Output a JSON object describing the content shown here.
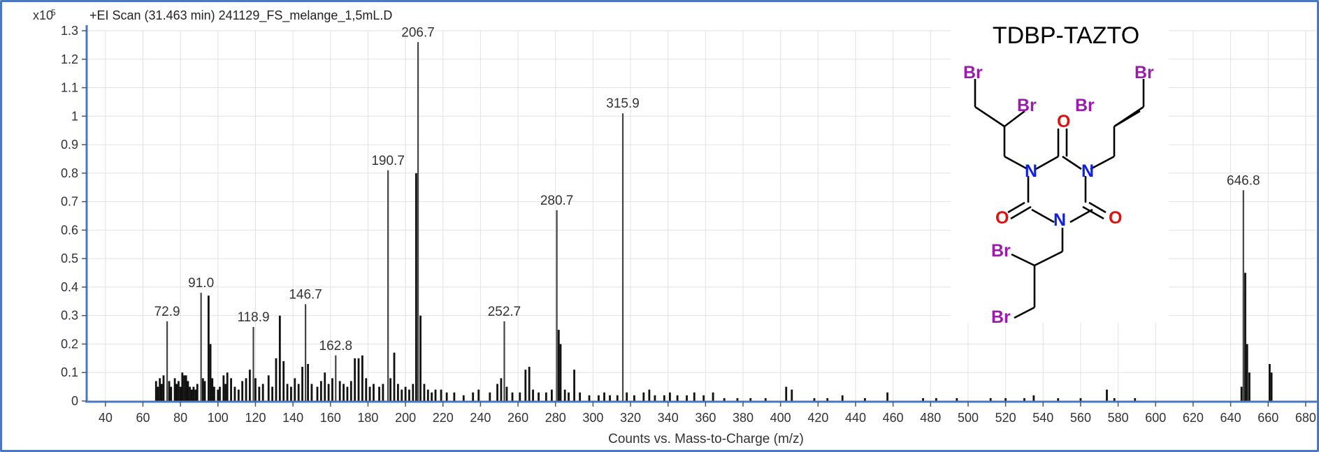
{
  "chart_data": {
    "type": "bar",
    "title": "+EI Scan (31.463 min) 241129_FS_melange_1,5mL.D",
    "xlabel": "Counts vs. Mass-to-Charge (m/z)",
    "ylabel": "",
    "y_multiplier": "x10",
    "y_exponent": "5",
    "xlim": [
      30,
      686
    ],
    "ylim": [
      0,
      1.3
    ],
    "grid": true,
    "x_ticks": [
      40,
      60,
      80,
      100,
      120,
      140,
      160,
      180,
      200,
      220,
      240,
      260,
      280,
      300,
      320,
      340,
      360,
      380,
      400,
      420,
      440,
      460,
      480,
      500,
      520,
      540,
      560,
      580,
      600,
      620,
      640,
      660,
      680
    ],
    "y_ticks": [
      0,
      0.1,
      0.2,
      0.3,
      0.4,
      0.5,
      0.6,
      0.7,
      0.8,
      0.9,
      1,
      1.1,
      1.2,
      1.3
    ],
    "labeled_peaks": [
      {
        "x": 72.9,
        "y": 0.28,
        "label": "72.9"
      },
      {
        "x": 91.0,
        "y": 0.38,
        "label": "91.0"
      },
      {
        "x": 118.9,
        "y": 0.26,
        "label": "118.9"
      },
      {
        "x": 146.7,
        "y": 0.34,
        "label": "146.7"
      },
      {
        "x": 162.8,
        "y": 0.16,
        "label": "162.8"
      },
      {
        "x": 190.7,
        "y": 0.81,
        "label": "190.7"
      },
      {
        "x": 206.7,
        "y": 1.26,
        "label": "206.7"
      },
      {
        "x": 252.7,
        "y": 0.28,
        "label": "252.7"
      },
      {
        "x": 280.7,
        "y": 0.67,
        "label": "280.7"
      },
      {
        "x": 315.9,
        "y": 1.01,
        "label": "315.9"
      },
      {
        "x": 646.8,
        "y": 0.74,
        "label": "646.8"
      }
    ],
    "peaks": [
      {
        "x": 67,
        "y": 0.07
      },
      {
        "x": 68,
        "y": 0.05
      },
      {
        "x": 69,
        "y": 0.08
      },
      {
        "x": 70,
        "y": 0.06
      },
      {
        "x": 71,
        "y": 0.09
      },
      {
        "x": 72.9,
        "y": 0.28
      },
      {
        "x": 74,
        "y": 0.07
      },
      {
        "x": 75,
        "y": 0.05
      },
      {
        "x": 77,
        "y": 0.08
      },
      {
        "x": 78,
        "y": 0.06
      },
      {
        "x": 79,
        "y": 0.07
      },
      {
        "x": 80,
        "y": 0.05
      },
      {
        "x": 81,
        "y": 0.1
      },
      {
        "x": 82,
        "y": 0.09
      },
      {
        "x": 83,
        "y": 0.09
      },
      {
        "x": 84,
        "y": 0.07
      },
      {
        "x": 85,
        "y": 0.05
      },
      {
        "x": 86,
        "y": 0.04
      },
      {
        "x": 87,
        "y": 0.05
      },
      {
        "x": 88,
        "y": 0.04
      },
      {
        "x": 89,
        "y": 0.06
      },
      {
        "x": 91.0,
        "y": 0.38
      },
      {
        "x": 92,
        "y": 0.08
      },
      {
        "x": 93,
        "y": 0.07
      },
      {
        "x": 95,
        "y": 0.37
      },
      {
        "x": 96,
        "y": 0.2
      },
      {
        "x": 97,
        "y": 0.08
      },
      {
        "x": 98,
        "y": 0.05
      },
      {
        "x": 100,
        "y": 0.04
      },
      {
        "x": 101,
        "y": 0.05
      },
      {
        "x": 103,
        "y": 0.09
      },
      {
        "x": 104,
        "y": 0.06
      },
      {
        "x": 105,
        "y": 0.1
      },
      {
        "x": 107,
        "y": 0.08
      },
      {
        "x": 109,
        "y": 0.05
      },
      {
        "x": 111,
        "y": 0.04
      },
      {
        "x": 113,
        "y": 0.07
      },
      {
        "x": 115,
        "y": 0.08
      },
      {
        "x": 117,
        "y": 0.11
      },
      {
        "x": 118.9,
        "y": 0.26
      },
      {
        "x": 120,
        "y": 0.08
      },
      {
        "x": 122,
        "y": 0.05
      },
      {
        "x": 124,
        "y": 0.06
      },
      {
        "x": 127,
        "y": 0.09
      },
      {
        "x": 129,
        "y": 0.05
      },
      {
        "x": 131,
        "y": 0.15
      },
      {
        "x": 133,
        "y": 0.3
      },
      {
        "x": 135,
        "y": 0.14
      },
      {
        "x": 137,
        "y": 0.06
      },
      {
        "x": 139,
        "y": 0.05
      },
      {
        "x": 141,
        "y": 0.08
      },
      {
        "x": 143,
        "y": 0.06
      },
      {
        "x": 145,
        "y": 0.12
      },
      {
        "x": 146.7,
        "y": 0.34
      },
      {
        "x": 148,
        "y": 0.13
      },
      {
        "x": 150,
        "y": 0.06
      },
      {
        "x": 153,
        "y": 0.05
      },
      {
        "x": 155,
        "y": 0.07
      },
      {
        "x": 157,
        "y": 0.1
      },
      {
        "x": 159,
        "y": 0.06
      },
      {
        "x": 161,
        "y": 0.08
      },
      {
        "x": 162.8,
        "y": 0.16
      },
      {
        "x": 165,
        "y": 0.07
      },
      {
        "x": 167,
        "y": 0.06
      },
      {
        "x": 169,
        "y": 0.05
      },
      {
        "x": 171,
        "y": 0.07
      },
      {
        "x": 173,
        "y": 0.15
      },
      {
        "x": 175,
        "y": 0.15
      },
      {
        "x": 177,
        "y": 0.16
      },
      {
        "x": 179,
        "y": 0.08
      },
      {
        "x": 181,
        "y": 0.05
      },
      {
        "x": 183,
        "y": 0.06
      },
      {
        "x": 186,
        "y": 0.05
      },
      {
        "x": 188,
        "y": 0.06
      },
      {
        "x": 190.7,
        "y": 0.81
      },
      {
        "x": 192,
        "y": 0.08
      },
      {
        "x": 194,
        "y": 0.17
      },
      {
        "x": 196,
        "y": 0.06
      },
      {
        "x": 198,
        "y": 0.04
      },
      {
        "x": 200,
        "y": 0.05
      },
      {
        "x": 202,
        "y": 0.04
      },
      {
        "x": 204,
        "y": 0.06
      },
      {
        "x": 205.7,
        "y": 0.8
      },
      {
        "x": 206.7,
        "y": 1.26
      },
      {
        "x": 208,
        "y": 0.3
      },
      {
        "x": 210,
        "y": 0.06
      },
      {
        "x": 212,
        "y": 0.04
      },
      {
        "x": 214,
        "y": 0.03
      },
      {
        "x": 216,
        "y": 0.04
      },
      {
        "x": 219,
        "y": 0.04
      },
      {
        "x": 222,
        "y": 0.03
      },
      {
        "x": 226,
        "y": 0.03
      },
      {
        "x": 231,
        "y": 0.02
      },
      {
        "x": 236,
        "y": 0.03
      },
      {
        "x": 239,
        "y": 0.04
      },
      {
        "x": 245,
        "y": 0.03
      },
      {
        "x": 249,
        "y": 0.06
      },
      {
        "x": 251,
        "y": 0.08
      },
      {
        "x": 252.7,
        "y": 0.28
      },
      {
        "x": 254,
        "y": 0.05
      },
      {
        "x": 257,
        "y": 0.03
      },
      {
        "x": 261,
        "y": 0.03
      },
      {
        "x": 264,
        "y": 0.11
      },
      {
        "x": 266,
        "y": 0.12
      },
      {
        "x": 268,
        "y": 0.04
      },
      {
        "x": 271,
        "y": 0.03
      },
      {
        "x": 275,
        "y": 0.03
      },
      {
        "x": 278,
        "y": 0.04
      },
      {
        "x": 280.7,
        "y": 0.67
      },
      {
        "x": 281.7,
        "y": 0.25
      },
      {
        "x": 282.7,
        "y": 0.2
      },
      {
        "x": 285,
        "y": 0.04
      },
      {
        "x": 287,
        "y": 0.03
      },
      {
        "x": 290,
        "y": 0.11
      },
      {
        "x": 293,
        "y": 0.03
      },
      {
        "x": 298,
        "y": 0.02
      },
      {
        "x": 303,
        "y": 0.02
      },
      {
        "x": 306,
        "y": 0.03
      },
      {
        "x": 309,
        "y": 0.02
      },
      {
        "x": 313,
        "y": 0.02
      },
      {
        "x": 315.9,
        "y": 1.01
      },
      {
        "x": 318,
        "y": 0.03
      },
      {
        "x": 322,
        "y": 0.02
      },
      {
        "x": 327,
        "y": 0.03
      },
      {
        "x": 330,
        "y": 0.04
      },
      {
        "x": 333,
        "y": 0.02
      },
      {
        "x": 338,
        "y": 0.02
      },
      {
        "x": 341,
        "y": 0.03
      },
      {
        "x": 345,
        "y": 0.02
      },
      {
        "x": 350,
        "y": 0.02
      },
      {
        "x": 354,
        "y": 0.03
      },
      {
        "x": 359,
        "y": 0.02
      },
      {
        "x": 364,
        "y": 0.03
      },
      {
        "x": 370,
        "y": 0.01
      },
      {
        "x": 377,
        "y": 0.01
      },
      {
        "x": 384,
        "y": 0.01
      },
      {
        "x": 392,
        "y": 0.01
      },
      {
        "x": 403,
        "y": 0.05
      },
      {
        "x": 406,
        "y": 0.04
      },
      {
        "x": 418,
        "y": 0.01
      },
      {
        "x": 425,
        "y": 0.01
      },
      {
        "x": 433,
        "y": 0.02
      },
      {
        "x": 445,
        "y": 0.01
      },
      {
        "x": 457,
        "y": 0.03
      },
      {
        "x": 476,
        "y": 0.01
      },
      {
        "x": 483,
        "y": 0.01
      },
      {
        "x": 494,
        "y": 0.01
      },
      {
        "x": 512,
        "y": 0.01
      },
      {
        "x": 520,
        "y": 0.01
      },
      {
        "x": 530,
        "y": 0.01
      },
      {
        "x": 535,
        "y": 0.02
      },
      {
        "x": 548,
        "y": 0.01
      },
      {
        "x": 560,
        "y": 0.01
      },
      {
        "x": 574,
        "y": 0.04
      },
      {
        "x": 578,
        "y": 0.01
      },
      {
        "x": 589,
        "y": 0.01
      },
      {
        "x": 645.8,
        "y": 0.05
      },
      {
        "x": 646.8,
        "y": 0.74
      },
      {
        "x": 647.8,
        "y": 0.45
      },
      {
        "x": 648.8,
        "y": 0.2
      },
      {
        "x": 650,
        "y": 0.1
      },
      {
        "x": 660.8,
        "y": 0.13
      },
      {
        "x": 661.8,
        "y": 0.1
      }
    ]
  },
  "inset": {
    "title": "TDBP-TAZTO",
    "atoms": {
      "br": "Br",
      "n": "N",
      "o": "O"
    },
    "colors": {
      "br": "#9B1BAB",
      "n": "#1020E0",
      "o": "#E01010",
      "bond": "#000000"
    }
  },
  "colors": {
    "frame": "#4a78c0",
    "axis": "#4a78c0",
    "grid": "#e2e2e2",
    "peak": "#111111",
    "label_peak": "#444444"
  }
}
